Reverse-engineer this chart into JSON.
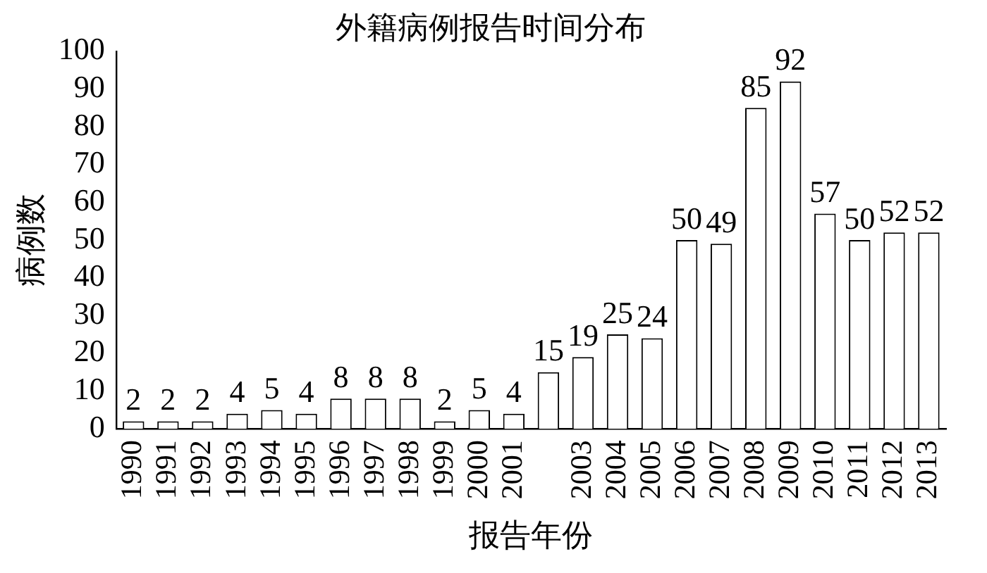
{
  "chart_data": {
    "type": "bar",
    "title": "外籍病例报告时间分布",
    "xlabel": "报告年份",
    "ylabel": "病例数",
    "categories": [
      "1990",
      "1991",
      "1992",
      "1993",
      "1994",
      "1995",
      "1996",
      "1997",
      "1998",
      "1999",
      "2000",
      "2001",
      null,
      "2003",
      "2004",
      "2005",
      "2006",
      "2007",
      "2008",
      "2009",
      "2010",
      "2011",
      "2012",
      "2013"
    ],
    "values": [
      2,
      2,
      2,
      4,
      5,
      4,
      8,
      8,
      8,
      2,
      5,
      4,
      15,
      19,
      25,
      24,
      50,
      49,
      85,
      92,
      57,
      50,
      52,
      52
    ],
    "color": "#ffffff",
    "ylim": [
      0,
      100
    ],
    "yticks": [
      0,
      10,
      20,
      30,
      40,
      50,
      60,
      70,
      80,
      90,
      100
    ],
    "grid": false,
    "legend": false,
    "data_labels": true
  }
}
